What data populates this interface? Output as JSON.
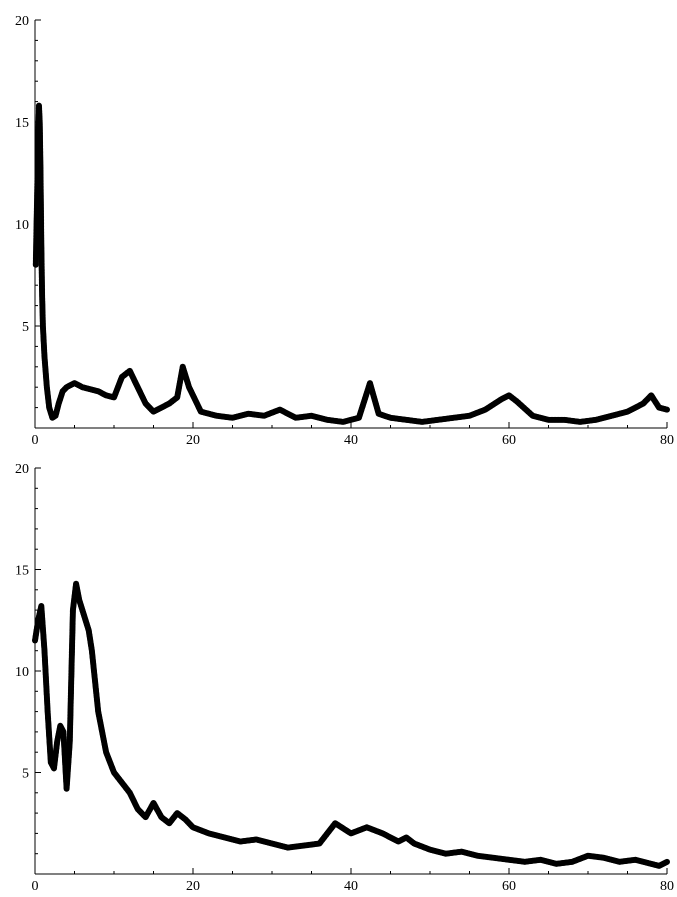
{
  "chart_data": [
    {
      "type": "scatter",
      "title": "",
      "xlabel": "",
      "ylabel": "",
      "xlim": [
        0,
        80
      ],
      "ylim": [
        0,
        20
      ],
      "x_ticks": [
        0,
        20,
        40,
        60,
        80
      ],
      "x_tick_labels": [
        "0",
        "20",
        "40",
        "60",
        "80"
      ],
      "y_ticks": [
        5,
        10,
        15,
        20
      ],
      "y_tick_labels": [
        "5",
        "10",
        "15",
        "20"
      ],
      "grid": false,
      "marker_color": "#000000",
      "series": [
        {
          "x": [
            0.1,
            0.3,
            0.5,
            0.6,
            0.7,
            0.8,
            0.9,
            1.0,
            1.2,
            1.5,
            1.8,
            2.2,
            2.6,
            3.0,
            3.5,
            4.0,
            5.0,
            6.0,
            7.0,
            8.0,
            9.0,
            10.0,
            11.0,
            12.0,
            13.0,
            14.0,
            15.0,
            16.0,
            17.0,
            18.0,
            18.7,
            19.5,
            21.0,
            23.0,
            25.0,
            27.0,
            29.0,
            31.0,
            33.0,
            35.0,
            37.0,
            39.0,
            41.0,
            42.4,
            43.5,
            45.0,
            47.0,
            49.0,
            51.0,
            53.0,
            55.0,
            57.0,
            59.0,
            60.0,
            61.0,
            63.0,
            65.0,
            67.0,
            69.0,
            71.0,
            73.0,
            75.0,
            77.0,
            78.0,
            79.0,
            80.0
          ],
          "y": [
            8.0,
            12.0,
            15.8,
            15.0,
            12.5,
            9.0,
            6.5,
            5.0,
            3.5,
            2.0,
            1.0,
            0.5,
            0.6,
            1.2,
            1.8,
            2.0,
            2.2,
            2.0,
            1.9,
            1.8,
            1.6,
            1.5,
            2.5,
            2.8,
            2.0,
            1.2,
            0.8,
            1.0,
            1.2,
            1.5,
            3.0,
            2.0,
            0.8,
            0.6,
            0.5,
            0.7,
            0.6,
            0.9,
            0.5,
            0.6,
            0.4,
            0.3,
            0.5,
            2.2,
            0.7,
            0.5,
            0.4,
            0.3,
            0.4,
            0.5,
            0.6,
            0.9,
            1.4,
            1.6,
            1.3,
            0.6,
            0.4,
            0.4,
            0.3,
            0.4,
            0.6,
            0.8,
            1.2,
            1.6,
            1.0,
            0.9
          ]
        }
      ]
    },
    {
      "type": "scatter",
      "title": "",
      "xlabel": "",
      "ylabel": "",
      "xlim": [
        0,
        80
      ],
      "ylim": [
        0,
        20
      ],
      "x_ticks": [
        0,
        20,
        40,
        60,
        80
      ],
      "x_tick_labels": [
        "0",
        "20",
        "40",
        "60",
        "80"
      ],
      "y_ticks": [
        5,
        10,
        15,
        20
      ],
      "y_tick_labels": [
        "5",
        "10",
        "15",
        "20"
      ],
      "grid": false,
      "marker_color": "#000000",
      "series": [
        {
          "x": [
            0.0,
            0.4,
            0.8,
            1.2,
            1.6,
            2.0,
            2.4,
            2.8,
            3.2,
            3.6,
            4.0,
            4.4,
            4.8,
            5.2,
            5.6,
            6.0,
            6.4,
            6.8,
            7.2,
            7.6,
            8.0,
            8.5,
            9.0,
            10.0,
            11.0,
            12.0,
            13.0,
            14.0,
            15.0,
            16.0,
            17.0,
            18.0,
            19.0,
            20.0,
            22.0,
            24.0,
            26.0,
            28.0,
            30.0,
            32.0,
            34.0,
            36.0,
            38.0,
            40.0,
            42.0,
            44.0,
            46.0,
            47.0,
            48.0,
            50.0,
            52.0,
            54.0,
            56.0,
            58.0,
            60.0,
            62.0,
            64.0,
            66.0,
            68.0,
            70.0,
            72.0,
            74.0,
            76.0,
            78.0,
            79.0,
            80.0
          ],
          "y": [
            11.5,
            12.5,
            13.2,
            11.0,
            8.0,
            5.5,
            5.2,
            6.5,
            7.3,
            7.0,
            4.2,
            6.5,
            13.0,
            14.3,
            13.5,
            13.0,
            12.5,
            12.0,
            11.0,
            9.5,
            8.0,
            7.0,
            6.0,
            5.0,
            4.5,
            4.0,
            3.2,
            2.8,
            3.5,
            2.8,
            2.5,
            3.0,
            2.7,
            2.3,
            2.0,
            1.8,
            1.6,
            1.7,
            1.5,
            1.3,
            1.4,
            1.5,
            2.5,
            2.0,
            2.3,
            2.0,
            1.6,
            1.8,
            1.5,
            1.2,
            1.0,
            1.1,
            0.9,
            0.8,
            0.7,
            0.6,
            0.7,
            0.5,
            0.6,
            0.9,
            0.8,
            0.6,
            0.7,
            0.5,
            0.4,
            0.6
          ]
        }
      ]
    }
  ]
}
